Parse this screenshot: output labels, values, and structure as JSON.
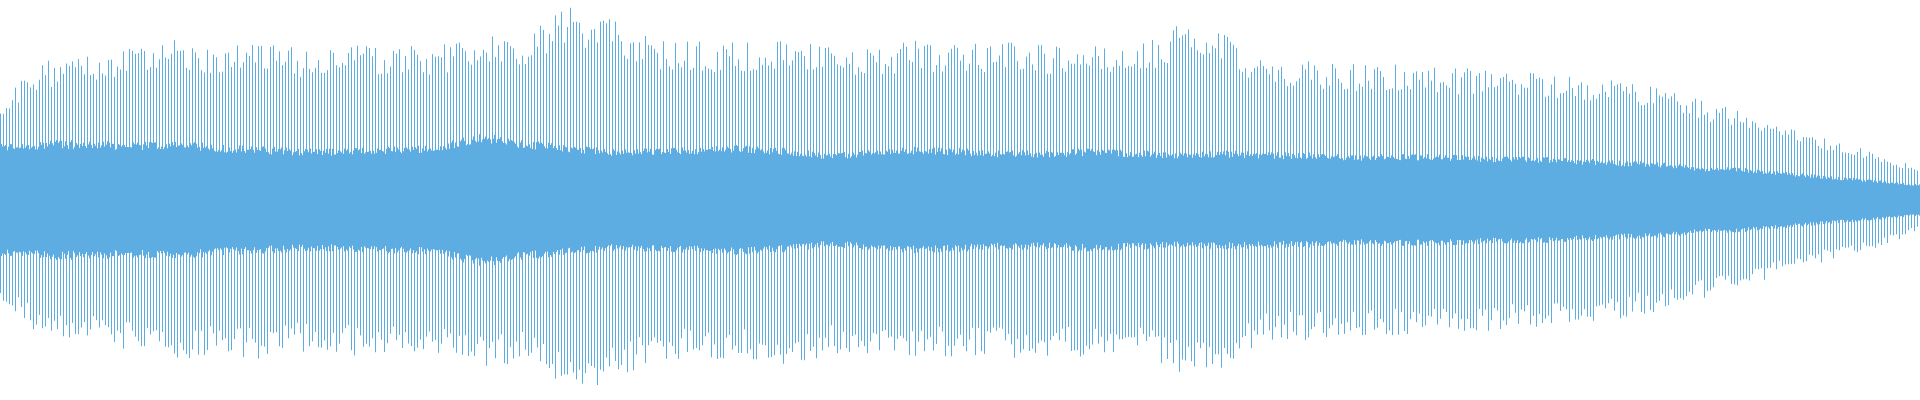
{
  "waveform": {
    "color": "#5dade2",
    "background": "#ffffff",
    "peak_envelope": [
      0.5,
      0.7,
      0.72,
      0.76,
      0.8,
      0.78,
      0.8,
      0.76,
      0.78,
      0.77,
      0.78,
      0.84,
      0.82,
      0.97,
      0.92,
      0.8,
      0.8,
      0.8,
      0.82,
      0.78,
      0.78,
      0.8,
      0.78,
      0.8,
      0.78,
      0.8,
      0.76,
      0.88,
      0.86,
      0.7,
      0.7,
      0.68,
      0.68,
      0.66,
      0.66,
      0.64,
      0.62,
      0.6,
      0.56,
      0.5,
      0.44,
      0.36,
      0.3,
      0.24,
      0.16
    ],
    "core_envelope": [
      0.28,
      0.3,
      0.3,
      0.29,
      0.3,
      0.28,
      0.27,
      0.26,
      0.26,
      0.27,
      0.28,
      0.34,
      0.3,
      0.28,
      0.26,
      0.26,
      0.27,
      0.28,
      0.26,
      0.24,
      0.25,
      0.27,
      0.26,
      0.25,
      0.25,
      0.26,
      0.25,
      0.24,
      0.25,
      0.24,
      0.24,
      0.23,
      0.23,
      0.23,
      0.22,
      0.22,
      0.21,
      0.2,
      0.19,
      0.17,
      0.16,
      0.14,
      0.12,
      0.1,
      0.08
    ]
  }
}
